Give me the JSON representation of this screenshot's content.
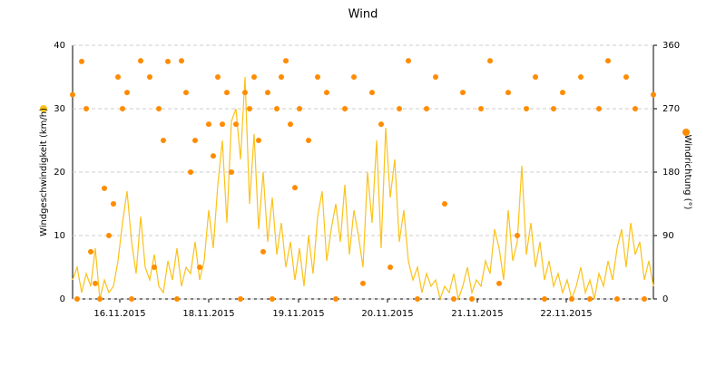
{
  "chart_data": {
    "type": "line",
    "title": "Wind",
    "xlim": [
      0,
      128
    ],
    "xticks": [
      {
        "value": 10.4,
        "label": "16.11.2015"
      },
      {
        "value": 30,
        "label": "18.11.2015"
      },
      {
        "value": 49.8,
        "label": "19.11.2015"
      },
      {
        "value": 69.4,
        "label": "20.11.2015"
      },
      {
        "value": 89.2,
        "label": "21.11.2015"
      },
      {
        "value": 108.8,
        "label": "22.11.2015"
      }
    ],
    "ylim": [
      0,
      40
    ],
    "yticks": [
      0,
      10,
      20,
      30,
      40
    ],
    "y2lim": [
      0,
      360
    ],
    "y2ticks": [
      0,
      90,
      180,
      270,
      360
    ],
    "grid": true,
    "series": [
      {
        "name": "Windgeschwindigkeit (km/h)",
        "type": "line",
        "color": "#fbc21a",
        "x": [
          0,
          1,
          2,
          3,
          4,
          5,
          6,
          7,
          8,
          9,
          10,
          11,
          12,
          13,
          14,
          15,
          16,
          17,
          18,
          19,
          20,
          21,
          22,
          23,
          24,
          25,
          26,
          27,
          28,
          29,
          30,
          31,
          32,
          33,
          34,
          35,
          36,
          37,
          38,
          39,
          40,
          41,
          42,
          43,
          44,
          45,
          46,
          47,
          48,
          49,
          50,
          51,
          52,
          53,
          54,
          55,
          56,
          57,
          58,
          59,
          60,
          61,
          62,
          63,
          64,
          65,
          66,
          67,
          68,
          69,
          70,
          71,
          72,
          73,
          74,
          75,
          76,
          77,
          78,
          79,
          80,
          81,
          82,
          83,
          84,
          85,
          86,
          87,
          88,
          89,
          90,
          91,
          92,
          93,
          94,
          95,
          96,
          97,
          98,
          99,
          100,
          101,
          102,
          103,
          104,
          105,
          106,
          107,
          108,
          109,
          110,
          111,
          112,
          113,
          114,
          115,
          116,
          117,
          118,
          119,
          120,
          121,
          122,
          123,
          124,
          125,
          126,
          127,
          128
        ],
        "values": [
          3,
          5,
          1,
          4,
          2,
          8,
          0,
          3,
          1,
          2,
          6,
          12,
          17,
          9,
          4,
          13,
          5,
          3,
          7,
          2,
          1,
          6,
          3,
          8,
          2,
          5,
          4,
          9,
          3,
          6,
          14,
          8,
          18,
          25,
          12,
          28,
          30,
          22,
          35,
          15,
          26,
          11,
          20,
          9,
          16,
          7,
          12,
          5,
          9,
          3,
          8,
          2,
          10,
          4,
          13,
          17,
          6,
          11,
          15,
          9,
          18,
          7,
          14,
          10,
          5,
          20,
          12,
          25,
          8,
          27,
          16,
          22,
          9,
          14,
          6,
          3,
          5,
          1,
          4,
          2,
          3,
          0,
          2,
          1,
          4,
          0,
          2,
          5,
          1,
          3,
          2,
          6,
          4,
          11,
          8,
          3,
          14,
          6,
          9,
          21,
          7,
          12,
          5,
          9,
          3,
          6,
          2,
          4,
          1,
          3,
          0,
          2,
          5,
          1,
          3,
          0,
          4,
          2,
          6,
          3,
          8,
          11,
          5,
          12,
          7,
          9,
          3,
          6,
          2
        ]
      },
      {
        "name": "Windrichtung (°)",
        "type": "scatter",
        "axis": "y2",
        "color": "#ff8c00",
        "x": [
          0,
          1,
          2,
          3,
          4,
          5,
          6,
          7,
          8,
          9,
          10,
          11,
          12,
          13,
          15,
          17,
          18,
          19,
          20,
          21,
          23,
          24,
          25,
          26,
          27,
          28,
          30,
          31,
          32,
          33,
          34,
          35,
          36,
          37,
          38,
          39,
          40,
          41,
          42,
          43,
          44,
          45,
          46,
          47,
          48,
          49,
          50,
          52,
          54,
          56,
          58,
          60,
          62,
          64,
          66,
          68,
          70,
          72,
          74,
          76,
          78,
          80,
          82,
          84,
          86,
          88,
          90,
          92,
          94,
          96,
          98,
          100,
          102,
          104,
          106,
          108,
          110,
          112,
          114,
          116,
          118,
          120,
          122,
          124,
          126,
          128
        ],
        "values": [
          290,
          0,
          337,
          270,
          67,
          22,
          0,
          157,
          90,
          135,
          315,
          270,
          293,
          0,
          338,
          315,
          45,
          270,
          225,
          337,
          0,
          338,
          293,
          180,
          225,
          45,
          248,
          203,
          315,
          248,
          293,
          180,
          248,
          0,
          293,
          270,
          315,
          225,
          67,
          293,
          0,
          270,
          315,
          338,
          248,
          158,
          270,
          225,
          315,
          293,
          0,
          270,
          315,
          22,
          293,
          248,
          45,
          270,
          338,
          0,
          270,
          315,
          135,
          0,
          293,
          0,
          270,
          338,
          22,
          293,
          90,
          270,
          315,
          0,
          270,
          293,
          0,
          315,
          0,
          270,
          338,
          0,
          315,
          270,
          0,
          290
        ]
      }
    ]
  }
}
